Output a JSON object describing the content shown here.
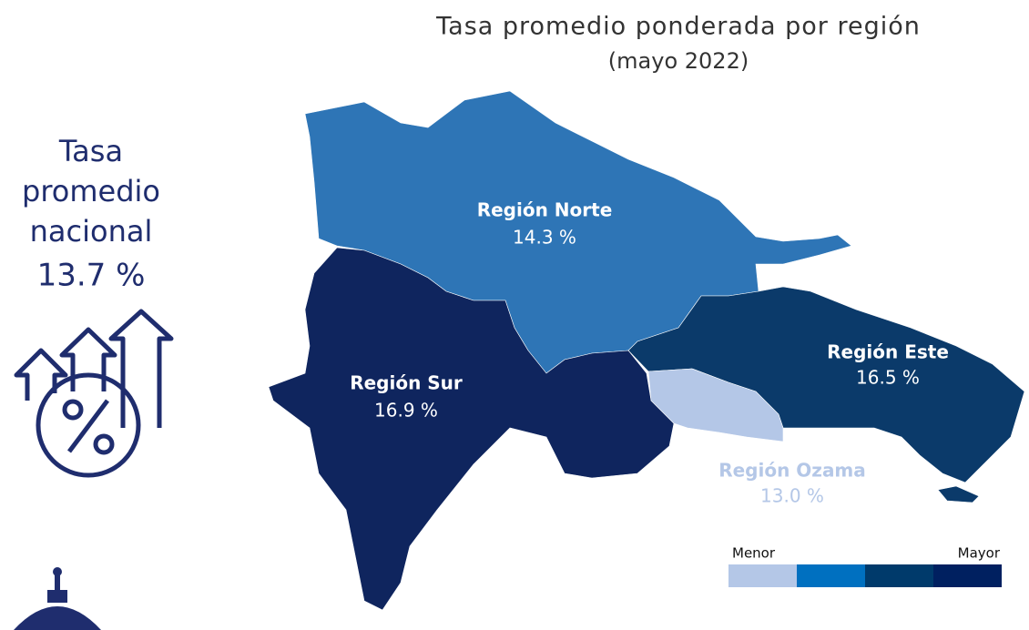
{
  "header": {
    "title": "Tasa promedio ponderada por región",
    "subtitle": "(mayo 2022)"
  },
  "national": {
    "lines": [
      "Tasa",
      "promedio",
      "nacional"
    ],
    "value": "13.7 %"
  },
  "regions": [
    {
      "name": "Región Norte",
      "value": "14.3 %",
      "color": "#2e75b6",
      "label_color": "#ffffff"
    },
    {
      "name": "Región Sur",
      "value": "16.9 %",
      "color": "#0f255e",
      "label_color": "#ffffff"
    },
    {
      "name": "Región Este",
      "value": "16.5 %",
      "color": "#0b3a6a",
      "label_color": "#ffffff"
    },
    {
      "name": "Región Ozama",
      "value": "13.0 %",
      "color": "#b4c7e7",
      "label_color": "#b4c7e7"
    }
  ],
  "legend": {
    "low": "Menor",
    "high": "Mayor",
    "colors": [
      "#b4c7e7",
      "#0070c0",
      "#003a6b",
      "#002060"
    ]
  }
}
